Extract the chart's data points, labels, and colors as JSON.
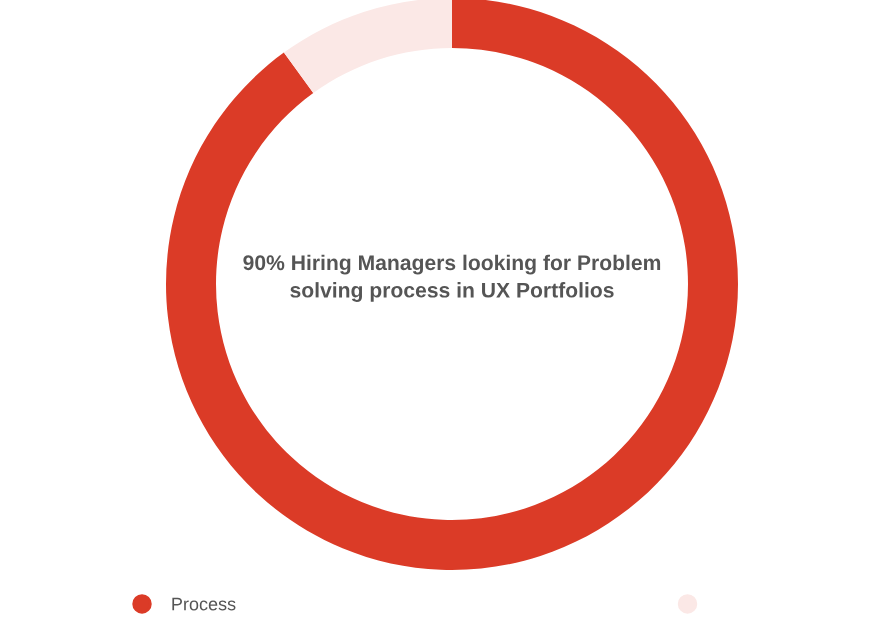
{
  "chart_data": {
    "type": "donut",
    "annotations": [
      "90% Hiring Managers looking for Problem solving process in UX Portfolios"
    ],
    "categories": [
      "Process",
      null
    ],
    "values": [
      90,
      10
    ],
    "colors": [
      "#db3b27",
      "#fbe8e6"
    ],
    "legend": "bottom"
  }
}
